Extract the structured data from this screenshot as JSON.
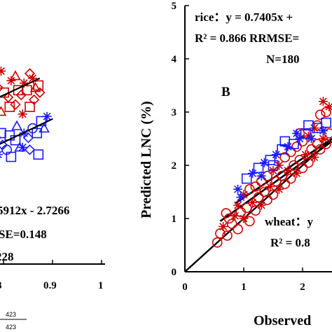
{
  "chart_data": [
    {
      "type": "scatter",
      "panel": "A (partially visible, cropped at left)",
      "xlim": [
        0.3,
        1.0
      ],
      "ylim": [
        0,
        1.0
      ],
      "x_ticks": [
        "0.9",
        "1"
      ],
      "x_tick_values": [
        0.9,
        1.0
      ],
      "x_tick_partial": "8",
      "annotations": [
        "5912x - 2.7266",
        "SE=0.148",
        "228"
      ],
      "footer_marks": [
        "423",
        "423"
      ],
      "colors": {
        "rice": "#cc0000",
        "wheat": "#1a1aff"
      },
      "series": [
        {
          "marker": "mixed",
          "color": "#cc0000",
          "points": [
            [
              0.35,
              0.78
            ],
            [
              0.38,
              0.74
            ],
            [
              0.42,
              0.8
            ],
            [
              0.45,
              0.72
            ],
            [
              0.48,
              0.77
            ],
            [
              0.5,
              0.82
            ],
            [
              0.52,
              0.7
            ],
            [
              0.55,
              0.76
            ],
            [
              0.58,
              0.74
            ],
            [
              0.6,
              0.81
            ],
            [
              0.62,
              0.72
            ],
            [
              0.65,
              0.7
            ],
            [
              0.67,
              0.77
            ],
            [
              0.7,
              0.79
            ],
            [
              0.72,
              0.73
            ],
            [
              0.74,
              0.71
            ],
            [
              0.76,
              0.76
            ],
            [
              0.78,
              0.73
            ],
            [
              0.8,
              0.8
            ],
            [
              0.82,
              0.78
            ],
            [
              0.84,
              0.74
            ],
            [
              0.86,
              0.75
            ],
            [
              0.87,
              0.72
            ],
            [
              0.4,
              0.68
            ],
            [
              0.44,
              0.64
            ],
            [
              0.5,
              0.66
            ],
            [
              0.56,
              0.68
            ],
            [
              0.6,
              0.64
            ],
            [
              0.66,
              0.66
            ],
            [
              0.7,
              0.67
            ],
            [
              0.75,
              0.63
            ],
            [
              0.8,
              0.66
            ],
            [
              0.83,
              0.69
            ],
            [
              0.36,
              0.62
            ],
            [
              0.54,
              0.61
            ]
          ]
        },
        {
          "marker": "mixed",
          "color": "#1a1aff",
          "points": [
            [
              0.34,
              0.45
            ],
            [
              0.37,
              0.41
            ],
            [
              0.4,
              0.47
            ],
            [
              0.43,
              0.43
            ],
            [
              0.46,
              0.48
            ],
            [
              0.49,
              0.44
            ],
            [
              0.52,
              0.47
            ],
            [
              0.55,
              0.42
            ],
            [
              0.58,
              0.46
            ],
            [
              0.61,
              0.5
            ],
            [
              0.64,
              0.48
            ],
            [
              0.67,
              0.45
            ],
            [
              0.7,
              0.52
            ],
            [
              0.73,
              0.49
            ],
            [
              0.76,
              0.55
            ],
            [
              0.79,
              0.53
            ],
            [
              0.82,
              0.57
            ],
            [
              0.85,
              0.55
            ],
            [
              0.88,
              0.6
            ],
            [
              0.9,
              0.57
            ],
            [
              0.92,
              0.62
            ],
            [
              0.5,
              0.51
            ],
            [
              0.56,
              0.53
            ],
            [
              0.6,
              0.55
            ],
            [
              0.66,
              0.54
            ],
            [
              0.71,
              0.58
            ],
            [
              0.75,
              0.49
            ],
            [
              0.8,
              0.48
            ],
            [
              0.45,
              0.52
            ],
            [
              0.86,
              0.46
            ]
          ]
        }
      ],
      "fit_lines": [
        {
          "color": "#000000",
          "from": [
            0.3,
            0.62
          ],
          "to": [
            0.87,
            0.78
          ]
        },
        {
          "color": "#000000",
          "from": [
            0.3,
            0.42
          ],
          "to": [
            0.96,
            0.61
          ]
        }
      ]
    },
    {
      "type": "scatter",
      "panel": "B",
      "panel_label": "B",
      "xlabel": "Observed",
      "ylabel": "Predicted LNC (%)",
      "xlim": [
        0,
        2.5
      ],
      "ylim": [
        0,
        5
      ],
      "x_ticks": [
        "0",
        "1",
        "2"
      ],
      "x_tick_values": [
        0,
        1,
        2
      ],
      "y_ticks": [
        "0",
        "1",
        "2",
        "3",
        "4",
        "5"
      ],
      "y_tick_values": [
        0,
        1,
        2,
        3,
        4,
        5
      ],
      "annotations": [
        "rice：y = 0.7405x +",
        "R² = 0.866 RRMSE=",
        "N=180",
        "wheat：y",
        "R² = 0.8"
      ],
      "colors": {
        "rice": "#cc0000",
        "wheat": "#1a1aff"
      },
      "series": [
        {
          "name": "rice",
          "color": "#cc0000",
          "points": [
            [
              0.55,
              0.55
            ],
            [
              0.6,
              0.72
            ],
            [
              0.65,
              0.85
            ],
            [
              0.72,
              0.68
            ],
            [
              0.8,
              0.9
            ],
            [
              0.85,
              1.05
            ],
            [
              0.9,
              0.8
            ],
            [
              0.95,
              1.12
            ],
            [
              1.0,
              1.0
            ],
            [
              1.05,
              1.2
            ],
            [
              1.1,
              0.95
            ],
            [
              1.15,
              1.3
            ],
            [
              1.2,
              1.15
            ],
            [
              1.25,
              1.4
            ],
            [
              1.3,
              1.25
            ],
            [
              1.35,
              1.5
            ],
            [
              1.4,
              1.35
            ],
            [
              1.45,
              1.6
            ],
            [
              1.5,
              1.45
            ],
            [
              1.55,
              1.7
            ],
            [
              1.6,
              1.55
            ],
            [
              1.65,
              1.8
            ],
            [
              1.7,
              1.65
            ],
            [
              1.75,
              1.9
            ],
            [
              1.8,
              1.75
            ],
            [
              1.85,
              2.0
            ],
            [
              1.9,
              1.85
            ],
            [
              1.95,
              2.1
            ],
            [
              2.0,
              1.95
            ],
            [
              2.05,
              2.2
            ],
            [
              2.1,
              2.05
            ],
            [
              2.15,
              2.3
            ],
            [
              2.2,
              2.15
            ],
            [
              2.25,
              2.4
            ],
            [
              2.3,
              2.3
            ],
            [
              2.35,
              2.5
            ],
            [
              2.4,
              2.4
            ],
            [
              2.45,
              2.6
            ],
            [
              1.0,
              1.45
            ],
            [
              1.2,
              1.6
            ],
            [
              1.4,
              1.8
            ],
            [
              1.6,
              2.0
            ],
            [
              1.8,
              2.25
            ],
            [
              2.0,
              2.45
            ],
            [
              2.2,
              2.7
            ],
            [
              2.3,
              2.95
            ],
            [
              2.4,
              3.0
            ],
            [
              2.45,
              3.1
            ],
            [
              1.1,
              1.55
            ],
            [
              1.3,
              1.7
            ],
            [
              1.5,
              1.9
            ],
            [
              1.7,
              2.15
            ],
            [
              1.9,
              2.35
            ],
            [
              2.1,
              2.55
            ],
            [
              0.7,
              1.1
            ],
            [
              0.75,
              1.0
            ],
            [
              0.9,
              1.25
            ],
            [
              1.95,
              2.6
            ],
            [
              2.25,
              2.75
            ],
            [
              2.35,
              3.2
            ]
          ]
        },
        {
          "name": "wheat",
          "color": "#1a1aff",
          "points": [
            [
              0.9,
              1.55
            ],
            [
              1.05,
              1.75
            ],
            [
              1.15,
              1.85
            ],
            [
              1.25,
              1.95
            ],
            [
              1.35,
              2.05
            ],
            [
              1.45,
              2.1
            ],
            [
              1.55,
              2.2
            ],
            [
              1.65,
              2.3
            ],
            [
              1.75,
              2.35
            ],
            [
              1.85,
              2.4
            ],
            [
              1.95,
              2.5
            ],
            [
              2.05,
              2.6
            ],
            [
              2.15,
              2.5
            ],
            [
              2.25,
              2.7
            ],
            [
              2.35,
              2.65
            ],
            [
              1.7,
              2.45
            ],
            [
              1.9,
              2.6
            ],
            [
              2.1,
              2.75
            ],
            [
              1.3,
              1.8
            ],
            [
              1.5,
              2.0
            ],
            [
              0.95,
              1.4
            ],
            [
              2.4,
              2.8
            ]
          ]
        }
      ],
      "fit_lines": [
        {
          "color": "#000000",
          "from": [
            0.85,
            1.28
          ],
          "to": [
            2.5,
            2.5
          ]
        },
        {
          "color": "#000000",
          "from": [
            0.6,
            0.95
          ],
          "to": [
            2.5,
            2.45
          ]
        },
        {
          "color": "#000000",
          "from": [
            0,
            0
          ],
          "to": [
            2.5,
            2.5
          ]
        }
      ]
    }
  ]
}
